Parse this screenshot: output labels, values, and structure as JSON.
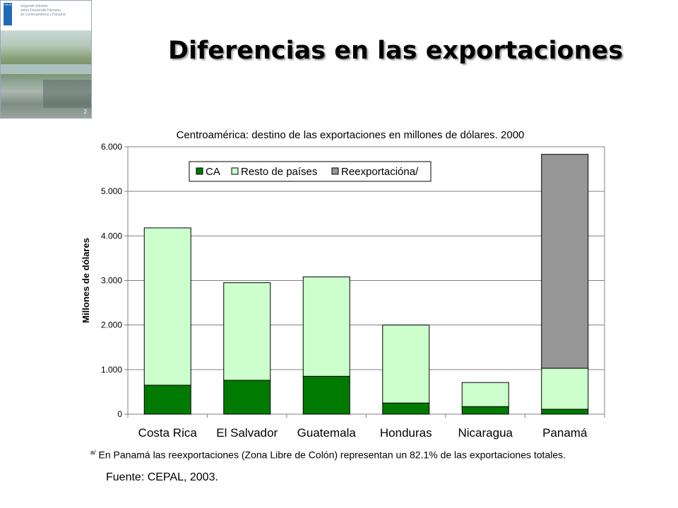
{
  "slide": {
    "title": "Diferencias en las exportaciones",
    "footnote_marker": "a/",
    "footnote": "En Panamá las reexportaciones (Zona Libre de Colón) representan un 82.1% de las exportaciones totales.",
    "source": "Fuente: CEPAL, 2003."
  },
  "cover": {
    "text_lines": [
      "Segundo Informe",
      "sobre Desarrollo Humano",
      "en Centroamérica y Panamá"
    ],
    "page_number": "2",
    "logo_text": "PNUD"
  },
  "chart_data": {
    "type": "bar",
    "stacked": true,
    "title": "Centroamérica: destino de las exportaciones en millones de dólares. 2000",
    "xlabel": "",
    "ylabel": "Millones de dólares",
    "ylim": [
      0,
      6000
    ],
    "yticks": [
      0,
      1000,
      2000,
      3000,
      4000,
      5000,
      6000
    ],
    "ytick_labels": [
      "0",
      "1.000",
      "2.000",
      "3.000",
      "4.000",
      "5.000",
      "6.000"
    ],
    "grid": true,
    "legend_position": "top",
    "categories": [
      "Costa Rica",
      "El Salvador",
      "Guatemala",
      "Honduras",
      "Nicaragua",
      "Panamá"
    ],
    "series": [
      {
        "name": "CA",
        "color": "#007a00",
        "values": [
          650,
          760,
          850,
          250,
          170,
          110
        ]
      },
      {
        "name": "Resto de países",
        "color": "#ccffcc",
        "values": [
          3530,
          2190,
          2230,
          1750,
          540,
          920
        ]
      },
      {
        "name": "Reexportacióna/",
        "color": "#969696",
        "values": [
          0,
          0,
          0,
          0,
          0,
          4800
        ]
      }
    ]
  }
}
